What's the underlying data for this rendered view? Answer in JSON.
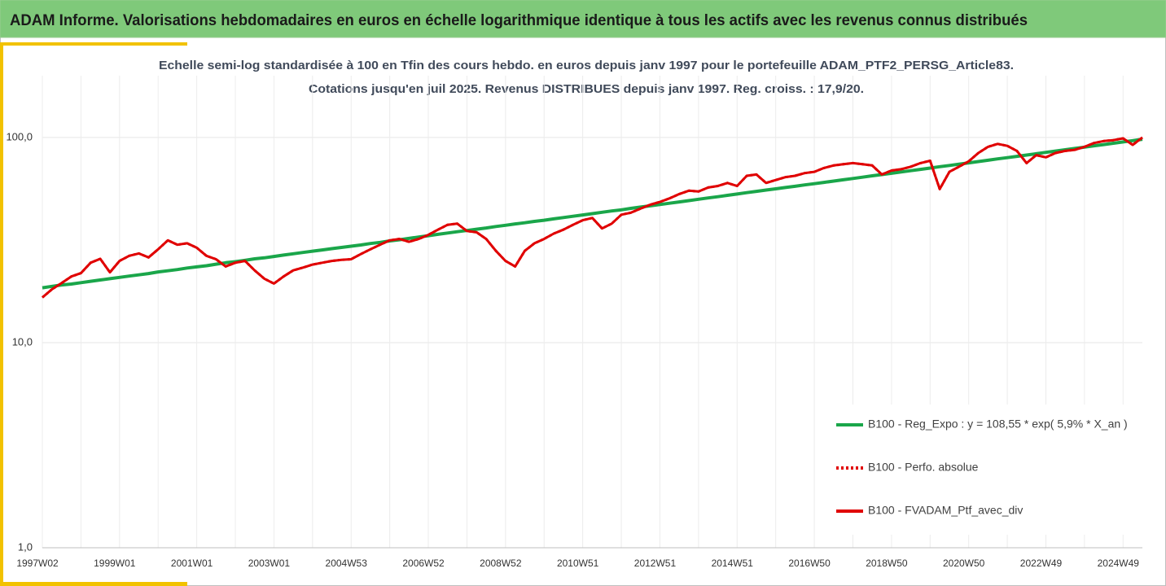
{
  "chart_data": {
    "type": "line",
    "title": "ADAM Informe. Valorisations hebdomadaires en euros en échelle logarithmique identique à tous les actifs avec les revenus connus distribués",
    "subtitle": [
      "Echelle semi-log standardisée à 100 en Tfin des cours hebdo.  en euros depuis janv 1997 pour le portefeuille ADAM_PTF2_PERSG_Article83.",
      "Cotations  jusqu'en juil 2025. Revenus DISTRIBUES depuis janv 1997. Reg. croiss. : 17,9/20."
    ],
    "log_scale": true,
    "grid": true,
    "legend": "lower right",
    "ylim": [
      1,
      200
    ],
    "yticks": [
      {
        "value": 1,
        "label": "1,0"
      },
      {
        "value": 10,
        "label": "10,0"
      },
      {
        "value": 100,
        "label": "100,0"
      }
    ],
    "categories": [
      "1997W02",
      null,
      null,
      null,
      null,
      null,
      null,
      null,
      "1999W01",
      null,
      null,
      null,
      null,
      null,
      null,
      null,
      "2001W01",
      null,
      null,
      null,
      null,
      null,
      null,
      null,
      "2003W01",
      null,
      null,
      null,
      null,
      null,
      null,
      null,
      "2004W53",
      null,
      null,
      null,
      null,
      null,
      null,
      null,
      "2006W52",
      null,
      null,
      null,
      null,
      null,
      null,
      null,
      "2008W52",
      null,
      null,
      null,
      null,
      null,
      null,
      null,
      "2010W51",
      null,
      null,
      null,
      null,
      null,
      null,
      null,
      "2012W51",
      null,
      null,
      null,
      null,
      null,
      null,
      null,
      "2014W51",
      null,
      null,
      null,
      null,
      null,
      null,
      null,
      "2016W50",
      null,
      null,
      null,
      null,
      null,
      null,
      null,
      "2018W50",
      null,
      null,
      null,
      null,
      null,
      null,
      null,
      "2020W50",
      null,
      null,
      null,
      null,
      null,
      null,
      null,
      "2022W49",
      null,
      null,
      null,
      null,
      null,
      null,
      null,
      "2024W49",
      null,
      null
    ],
    "series": [
      {
        "name": "B100 - Reg_Expo : y = 108,55 * exp( 5,9% *  X_an )",
        "color": "#1aa64a",
        "style": "solid",
        "values": [
          18.5,
          18.8,
          19.1,
          19.3,
          19.6,
          19.9,
          20.2,
          20.5,
          20.8,
          21.1,
          21.4,
          21.7,
          22.1,
          22.4,
          22.7,
          23.1,
          23.4,
          23.7,
          24.1,
          24.5,
          24.8,
          25.2,
          25.6,
          25.9,
          26.3,
          26.7,
          27.1,
          27.5,
          27.9,
          28.3,
          28.7,
          29.1,
          29.5,
          29.9,
          30.4,
          30.8,
          31.3,
          31.7,
          32.2,
          32.7,
          33.2,
          33.7,
          34.2,
          34.7,
          35.2,
          35.7,
          36.2,
          36.8,
          37.3,
          37.9,
          38.4,
          39.0,
          39.5,
          40.1,
          40.7,
          41.3,
          41.9,
          42.5,
          43.2,
          43.8,
          44.4,
          45.1,
          45.8,
          46.4,
          47.1,
          47.8,
          48.5,
          49.2,
          50.0,
          50.7,
          51.4,
          52.2,
          53.0,
          53.8,
          54.6,
          55.4,
          56.2,
          57.0,
          57.8,
          58.7,
          59.5,
          60.4,
          61.3,
          62.2,
          63.1,
          64.0,
          65.0,
          65.9,
          66.9,
          67.9,
          68.9,
          69.9,
          70.9,
          72.0,
          73.0,
          74.1,
          75.2,
          76.3,
          77.4,
          78.6,
          79.7,
          80.9,
          82.1,
          83.3,
          84.6,
          85.8,
          87.1,
          88.4,
          89.7,
          91.0,
          92.3,
          93.7,
          95.1,
          96.5,
          98.0
        ]
      },
      {
        "name": "B100 - Perfo. absolue",
        "color": "#e00000",
        "style": "dotted",
        "values": [
          16.6,
          18.2,
          19.5,
          21.0,
          21.8,
          24.5,
          25.6,
          22.0,
          25.0,
          26.5,
          27.2,
          26.0,
          28.5,
          31.5,
          30.0,
          30.5,
          29.0,
          26.5,
          25.5,
          23.5,
          24.5,
          25.0,
          22.5,
          20.5,
          19.4,
          21.0,
          22.5,
          23.2,
          24.0,
          24.5,
          25.0,
          25.3,
          25.5,
          27.0,
          28.5,
          30.0,
          31.5,
          32.0,
          31.0,
          32.0,
          33.5,
          35.5,
          37.5,
          38.0,
          35.0,
          34.5,
          32.0,
          28.0,
          25.0,
          23.5,
          28.0,
          30.5,
          32.0,
          34.0,
          35.5,
          37.5,
          39.5,
          40.5,
          36.0,
          38.0,
          42.0,
          43.0,
          45.0,
          47.0,
          48.5,
          50.5,
          53.0,
          55.0,
          54.5,
          57.0,
          58.0,
          60.0,
          58.0,
          65.0,
          66.0,
          60.0,
          62.0,
          64.0,
          65.0,
          67.0,
          68.0,
          71.0,
          73.0,
          74.0,
          75.0,
          74.0,
          73.0,
          66.0,
          69.0,
          70.0,
          72.0,
          75.0,
          77.0,
          56.0,
          68.0,
          72.0,
          76.5,
          84.0,
          90.0,
          93.0,
          91.0,
          86.0,
          75.0,
          82.0,
          80.0,
          84.0,
          86.0,
          87.0,
          90.0,
          94.0,
          96.0,
          97.0,
          99.0,
          92.0,
          100.0
        ]
      },
      {
        "name": "B100 - FVADAM_Ptf_avec_div",
        "color": "#e00000",
        "style": "solid",
        "values": [
          16.6,
          18.2,
          19.5,
          21.0,
          21.8,
          24.5,
          25.6,
          22.0,
          25.0,
          26.5,
          27.2,
          26.0,
          28.5,
          31.5,
          30.0,
          30.5,
          29.0,
          26.5,
          25.5,
          23.5,
          24.5,
          25.0,
          22.5,
          20.5,
          19.4,
          21.0,
          22.5,
          23.2,
          24.0,
          24.5,
          25.0,
          25.3,
          25.5,
          27.0,
          28.5,
          30.0,
          31.5,
          32.0,
          31.0,
          32.0,
          33.5,
          35.5,
          37.5,
          38.0,
          35.0,
          34.5,
          32.0,
          28.0,
          25.0,
          23.5,
          28.0,
          30.5,
          32.0,
          34.0,
          35.5,
          37.5,
          39.5,
          40.5,
          36.0,
          38.0,
          42.0,
          43.0,
          45.0,
          47.0,
          48.5,
          50.5,
          53.0,
          55.0,
          54.5,
          57.0,
          58.0,
          60.0,
          58.0,
          65.0,
          66.0,
          60.0,
          62.0,
          64.0,
          65.0,
          67.0,
          68.0,
          71.0,
          73.0,
          74.0,
          75.0,
          74.0,
          73.0,
          66.0,
          69.0,
          70.0,
          72.0,
          75.0,
          77.0,
          56.0,
          68.0,
          72.0,
          76.5,
          84.0,
          90.0,
          93.0,
          91.0,
          86.0,
          75.0,
          82.0,
          80.0,
          84.0,
          86.0,
          87.0,
          90.0,
          94.0,
          96.0,
          97.0,
          99.0,
          92.0,
          100.0
        ]
      }
    ]
  }
}
